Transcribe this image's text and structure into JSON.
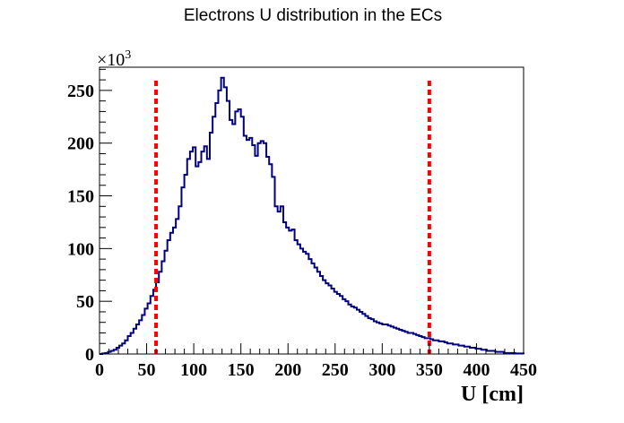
{
  "chart_data": {
    "type": "histogram",
    "title": "Electrons U distribution in the ECs",
    "xlabel": "U [cm]",
    "ylabel": "",
    "y_multiplier_base": "×10",
    "y_multiplier_exp": "3",
    "xlim": [
      0,
      450
    ],
    "ylim": [
      0,
      272
    ],
    "x_ticks": [
      "0",
      "50",
      "100",
      "150",
      "200",
      "250",
      "300",
      "350",
      "400",
      "450"
    ],
    "y_ticks": [
      "0",
      "50",
      "100",
      "150",
      "200",
      "250"
    ],
    "grid": false,
    "legend": "none",
    "bin_width": 3,
    "bin_start": 0,
    "series": [
      {
        "color": "#000080",
        "values": [
          0,
          0.5,
          1,
          2,
          3,
          4,
          6,
          8,
          10,
          13,
          17,
          20,
          24,
          28,
          32,
          37,
          43,
          48,
          55,
          61,
          68,
          78,
          88,
          98,
          108,
          115,
          120,
          128,
          140,
          158,
          170,
          185,
          192,
          196,
          178,
          182,
          192,
          197,
          185,
          210,
          225,
          238,
          250,
          262,
          253,
          240,
          222,
          218,
          230,
          232,
          225,
          207,
          203,
          205,
          198,
          188,
          200,
          202,
          200,
          187,
          180,
          168,
          140,
          135,
          140,
          125,
          120,
          117,
          118,
          108,
          104,
          100,
          97,
          95,
          90,
          86,
          82,
          78,
          74,
          70,
          67,
          65,
          62,
          59,
          57,
          55,
          52,
          50,
          47,
          45,
          44,
          42,
          40,
          38,
          36,
          34,
          33,
          31,
          30,
          29,
          28,
          28,
          27,
          26,
          25,
          24,
          23,
          22,
          21,
          20,
          20,
          19,
          18,
          17,
          16,
          15,
          15,
          14,
          13,
          13,
          12,
          12,
          11,
          10,
          10,
          9,
          9,
          8,
          8,
          7,
          7,
          6,
          6,
          5,
          5,
          4,
          4,
          3,
          3,
          3,
          2,
          2,
          2,
          1,
          1,
          1,
          1,
          0.5,
          0.5,
          0.5
        ]
      }
    ],
    "cut_lines": [
      {
        "x": 60,
        "color": "#ff0000",
        "style": "dashed"
      },
      {
        "x": 350,
        "color": "#ff0000",
        "style": "dashed"
      }
    ]
  }
}
